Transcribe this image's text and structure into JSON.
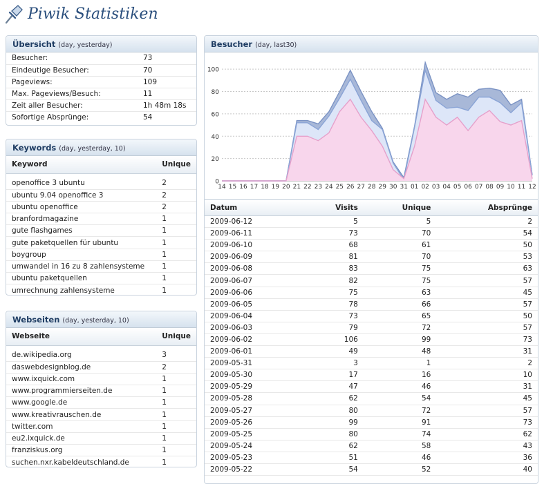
{
  "app": {
    "title": "Piwik Statistiken"
  },
  "overview": {
    "title": "Übersicht",
    "subtitle": "(day, yesterday)",
    "rows": [
      {
        "label": "Besucher:",
        "value": "73"
      },
      {
        "label": "Eindeutige Besucher:",
        "value": "70"
      },
      {
        "label": "Pageviews:",
        "value": "109"
      },
      {
        "label": "Max. Pageviews/Besuch:",
        "value": "11"
      },
      {
        "label": "Zeit aller Besucher:",
        "value": "1h 48m 18s"
      },
      {
        "label": "Sofortige Absprünge:",
        "value": "54"
      }
    ]
  },
  "keywords": {
    "title": "Keywords",
    "subtitle": "(day, yesterday, 10)",
    "columns": [
      "Keyword",
      "Unique"
    ],
    "rows": [
      [
        "openoffice 3 ubuntu",
        "2"
      ],
      [
        "ubuntu 9.04 openoffice 3",
        "2"
      ],
      [
        "ubuntu openoffice",
        "2"
      ],
      [
        "branfordmagazine",
        "1"
      ],
      [
        "gute flashgames",
        "1"
      ],
      [
        "gute paketquellen für ubuntu",
        "1"
      ],
      [
        "boygroup",
        "1"
      ],
      [
        "umwandel in 16 zu 8 zahlensysteme",
        "1"
      ],
      [
        "ubuntu paketquellen",
        "1"
      ],
      [
        "umrechnung zahlensysteme",
        "1"
      ]
    ]
  },
  "websites": {
    "title": "Webseiten",
    "subtitle": "(day, yesterday, 10)",
    "columns": [
      "Webseite",
      "Unique"
    ],
    "rows": [
      [
        "de.wikipedia.org",
        "3"
      ],
      [
        "daswebdesignblog.de",
        "2"
      ],
      [
        "www.ixquick.com",
        "1"
      ],
      [
        "www.programmierseiten.de",
        "1"
      ],
      [
        "www.google.de",
        "1"
      ],
      [
        "www.kreativrauschen.de",
        "1"
      ],
      [
        "twitter.com",
        "1"
      ],
      [
        "eu2.ixquick.de",
        "1"
      ],
      [
        "franziskus.org",
        "1"
      ],
      [
        "suchen.nxr.kabeldeutschland.de",
        "1"
      ]
    ]
  },
  "visitors": {
    "title": "Besucher",
    "subtitle": "(day, last30)",
    "columns": [
      "Datum",
      "Visits",
      "Unique",
      "Absprünge"
    ],
    "rows": [
      [
        "2009-06-12",
        "5",
        "5",
        "2"
      ],
      [
        "2009-06-11",
        "73",
        "70",
        "54"
      ],
      [
        "2009-06-10",
        "68",
        "61",
        "50"
      ],
      [
        "2009-06-09",
        "81",
        "70",
        "53"
      ],
      [
        "2009-06-08",
        "83",
        "75",
        "63"
      ],
      [
        "2009-06-07",
        "82",
        "75",
        "57"
      ],
      [
        "2009-06-06",
        "75",
        "63",
        "45"
      ],
      [
        "2009-06-05",
        "78",
        "66",
        "57"
      ],
      [
        "2009-06-04",
        "73",
        "65",
        "50"
      ],
      [
        "2009-06-03",
        "79",
        "72",
        "57"
      ],
      [
        "2009-06-02",
        "106",
        "99",
        "73"
      ],
      [
        "2009-06-01",
        "49",
        "48",
        "31"
      ],
      [
        "2009-05-31",
        "3",
        "1",
        "2"
      ],
      [
        "2009-05-30",
        "17",
        "16",
        "10"
      ],
      [
        "2009-05-29",
        "47",
        "46",
        "31"
      ],
      [
        "2009-05-28",
        "62",
        "54",
        "45"
      ],
      [
        "2009-05-27",
        "80",
        "72",
        "57"
      ],
      [
        "2009-05-26",
        "99",
        "91",
        "73"
      ],
      [
        "2009-05-25",
        "80",
        "74",
        "62"
      ],
      [
        "2009-05-24",
        "62",
        "58",
        "43"
      ],
      [
        "2009-05-23",
        "51",
        "46",
        "36"
      ],
      [
        "2009-05-22",
        "54",
        "52",
        "40"
      ]
    ]
  },
  "chart_data": {
    "type": "area",
    "x": [
      "14",
      "15",
      "16",
      "17",
      "18",
      "19",
      "20",
      "21",
      "22",
      "23",
      "24",
      "25",
      "26",
      "27",
      "28",
      "29",
      "30",
      "31",
      "01",
      "02",
      "03",
      "04",
      "05",
      "06",
      "07",
      "08",
      "09",
      "10",
      "11",
      "12"
    ],
    "series": [
      {
        "values": [
          0,
          0,
          0,
          0,
          0,
          0,
          0,
          54,
          54,
          51,
          62,
          80,
          99,
          80,
          62,
          47,
          17,
          3,
          49,
          106,
          79,
          73,
          78,
          75,
          82,
          83,
          81,
          68,
          73,
          5
        ],
        "color": "#a8b8d8"
      },
      {
        "values": [
          0,
          0,
          0,
          0,
          0,
          0,
          0,
          52,
          52,
          46,
          58,
          74,
          91,
          72,
          54,
          46,
          16,
          1,
          48,
          99,
          72,
          65,
          66,
          63,
          75,
          75,
          70,
          61,
          70,
          5
        ],
        "color": "#dde6f8"
      },
      {
        "values": [
          0,
          0,
          0,
          0,
          0,
          0,
          0,
          40,
          40,
          36,
          43,
          62,
          73,
          57,
          45,
          31,
          10,
          2,
          31,
          73,
          57,
          50,
          57,
          45,
          57,
          63,
          53,
          50,
          54,
          2
        ],
        "color": "#f8d6ec"
      }
    ],
    "ylim": [
      0,
      110
    ],
    "yticks": [
      "0",
      "20",
      "40",
      "60",
      "80",
      "100"
    ],
    "grid": true
  }
}
